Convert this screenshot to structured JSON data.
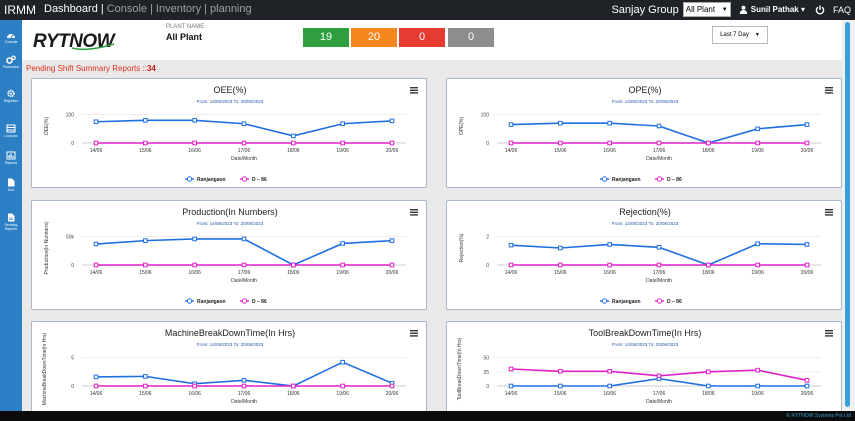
{
  "topbar": {
    "brand": "IRMM",
    "nav": [
      {
        "label": "Dashboard",
        "active": true
      },
      {
        "label": "|",
        "active": true
      },
      {
        "label": "Console",
        "active": false
      },
      {
        "label": "|",
        "active": false
      },
      {
        "label": "Inventory",
        "active": false
      },
      {
        "label": "|",
        "active": false
      },
      {
        "label": "planning",
        "active": false
      }
    ],
    "group": "Sanjay Group",
    "plant_selected": "All Plant",
    "user": "Sunil Pathak ▾",
    "power_icon": "power-icon",
    "faq": "FAQ"
  },
  "sidebar": {
    "items": [
      {
        "label": "Console",
        "icon": "dashboard-icon"
      },
      {
        "label": "Production",
        "icon": "gears-icon"
      },
      {
        "label": "Rejection",
        "icon": "gear-icon"
      },
      {
        "label": "Lookups",
        "icon": "list-icon"
      },
      {
        "label": "Reports",
        "icon": "chart-icon"
      },
      {
        "label": "Doc",
        "icon": "document-icon"
      },
      {
        "label": "Pending Reports",
        "icon": "pending-document-icon"
      }
    ]
  },
  "header": {
    "logo_text": "RYTNOW",
    "plant_name_label": "PLANT NAME",
    "plant_name": "All Plant",
    "counts": [
      {
        "value": "19",
        "color": "#2e9e3e"
      },
      {
        "value": "20",
        "color": "#f6871f"
      },
      {
        "value": "0",
        "color": "#e63b30"
      },
      {
        "value": "0",
        "color": "#8d8d8d"
      }
    ],
    "range_selected": "Last 7 Day"
  },
  "pending": {
    "label": "Pending Shift Summary Reports ::",
    "count": "34"
  },
  "footer": {
    "copyright": "© RYTNOW Systems Pvt Ltd"
  },
  "chart_data": [
    {
      "type": "line",
      "title": "OEE(%)",
      "subtitle": "From: 14/06/2023 To: 20/06/2023",
      "ylabel": "OEE(%)",
      "xlabel": "Date/Month",
      "x": [
        "14/06",
        "15/06",
        "16/06",
        "17/06",
        "18/06",
        "19/06",
        "20/06"
      ],
      "yticks": [
        0,
        100
      ],
      "ytick_labels": [
        "0",
        "100"
      ],
      "ylim": [
        0,
        120
      ],
      "series": [
        {
          "name": "Ranjangaon",
          "color": "#1f6fe0",
          "values": [
            75,
            80,
            80,
            68,
            25,
            68,
            78
          ]
        },
        {
          "name": "D – 86",
          "color": "#e020c8",
          "values": [
            0,
            0,
            0,
            0,
            0,
            0,
            0
          ]
        }
      ],
      "legend": "bottom-center"
    },
    {
      "type": "line",
      "title": "OPE(%)",
      "subtitle": "From: 14/06/2023 To: 20/06/2023",
      "ylabel": "OPE(%)",
      "xlabel": "Date/Month",
      "x": [
        "14/06",
        "15/06",
        "16/06",
        "17/06",
        "18/06",
        "19/06",
        "20/06"
      ],
      "yticks": [
        0,
        100
      ],
      "ytick_labels": [
        "0",
        "100"
      ],
      "ylim": [
        0,
        120
      ],
      "series": [
        {
          "name": "Ranjangaon",
          "color": "#1f6fe0",
          "values": [
            65,
            70,
            70,
            60,
            0,
            50,
            65
          ]
        },
        {
          "name": "D – 86",
          "color": "#e020c8",
          "values": [
            0,
            0,
            0,
            0,
            0,
            0,
            0
          ]
        }
      ],
      "legend": "bottom-center"
    },
    {
      "type": "line",
      "title": "Production(In Numbers)",
      "subtitle": "From: 14/06/2023 To: 20/06/2023",
      "ylabel": "Production(In Numbers)",
      "xlabel": "Date/Month",
      "x": [
        "14/06",
        "15/06",
        "16/06",
        "17/06",
        "18/06",
        "19/06",
        "20/06"
      ],
      "yticks": [
        0,
        50000
      ],
      "ytick_labels": [
        "0",
        "50k"
      ],
      "ylim": [
        0,
        60000
      ],
      "series": [
        {
          "name": "Ranjangaon",
          "color": "#1f6fe0",
          "values": [
            37000,
            43000,
            46000,
            46000,
            0,
            38000,
            43000
          ]
        },
        {
          "name": "D – 86",
          "color": "#e020c8",
          "values": [
            0,
            0,
            0,
            0,
            0,
            0,
            0
          ]
        }
      ],
      "legend": "bottom-center"
    },
    {
      "type": "line",
      "title": "Rejection(%)",
      "subtitle": "From: 14/06/2023 To: 20/06/2023",
      "ylabel": "Rejection(%)",
      "xlabel": "Date/Month",
      "x": [
        "14/06",
        "15/06",
        "16/06",
        "17/06",
        "18/06",
        "19/06",
        "20/06"
      ],
      "yticks": [
        0,
        2
      ],
      "ytick_labels": [
        "0",
        "2"
      ],
      "ylim": [
        0,
        2.4
      ],
      "series": [
        {
          "name": "Ranjangaon",
          "color": "#1f6fe0",
          "values": [
            1.4,
            1.2,
            1.45,
            1.25,
            0,
            1.5,
            1.45
          ]
        },
        {
          "name": "D – 86",
          "color": "#e020c8",
          "values": [
            0,
            0,
            0,
            0,
            0,
            0,
            0
          ]
        }
      ],
      "legend": "bottom-center"
    },
    {
      "type": "line",
      "title": "MachineBreakDownTime(In Hrs)",
      "subtitle": "From: 14/06/2023 To: 20/06/2023",
      "ylabel": "MachineBreakDownTime(In Hrs)",
      "xlabel": "Date/Month",
      "x": [
        "14/06",
        "15/06",
        "16/06",
        "17/06",
        "18/06",
        "19/06",
        "20/06"
      ],
      "yticks": [
        0,
        5
      ],
      "ytick_labels": [
        "0",
        "5"
      ],
      "ylim": [
        0,
        6
      ],
      "series": [
        {
          "name": "Ranjangaon",
          "color": "#1f6fe0",
          "values": [
            1.6,
            1.7,
            0.4,
            1.0,
            0,
            4.2,
            0.5
          ]
        },
        {
          "name": "D – 86",
          "color": "#e020c8",
          "values": [
            0,
            0,
            0,
            0,
            0,
            0,
            0
          ]
        }
      ],
      "legend": "bottom-center"
    },
    {
      "type": "line",
      "title": "ToolBreakDownTime(In Hrs)",
      "subtitle": "From: 14/06/2023 To: 20/06/2023",
      "ylabel": "ToolBreakDownTime(In Hrs)",
      "xlabel": "Date/Month",
      "x": [
        "14/06",
        "15/06",
        "16/06",
        "17/06",
        "18/06",
        "19/06",
        "20/06"
      ],
      "yticks": [
        0,
        25,
        50
      ],
      "ytick_labels": [
        "0",
        "25",
        "50"
      ],
      "ylim": [
        0,
        60
      ],
      "series": [
        {
          "name": "Ranjangaon",
          "color": "#1f6fe0",
          "values": [
            0,
            0,
            0,
            13,
            0,
            0,
            0
          ]
        },
        {
          "name": "D – 86",
          "color": "#e020c8",
          "values": [
            30,
            26,
            26,
            18,
            25,
            28,
            10
          ]
        }
      ],
      "legend": "bottom-center"
    }
  ]
}
